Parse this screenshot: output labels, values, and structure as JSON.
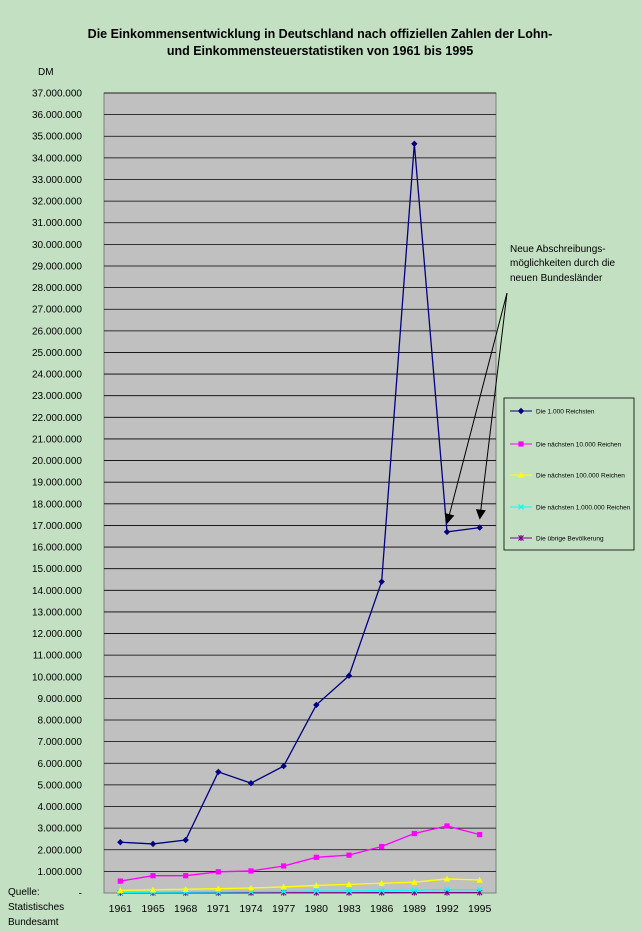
{
  "chart_data": {
    "type": "line",
    "title_lines": [
      "Die Einkommensentwicklung in Deutschland nach offiziellen Zahlen der Lohn-",
      "und Einkommensteuerstatistiken von 1961 bis 1995"
    ],
    "ylabel": "DM",
    "categories": [
      "1961",
      "1965",
      "1968",
      "1971",
      "1974",
      "1977",
      "1980",
      "1983",
      "1986",
      "1989",
      "1992",
      "1995"
    ],
    "ylim": [
      0,
      37000000
    ],
    "y_ticks": [
      "-",
      "1.000.000",
      "2.000.000",
      "3.000.000",
      "4.000.000",
      "5.000.000",
      "6.000.000",
      "7.000.000",
      "8.000.000",
      "9.000.000",
      "10.000.000",
      "11.000.000",
      "12.000.000",
      "13.000.000",
      "14.000.000",
      "15.000.000",
      "16.000.000",
      "17.000.000",
      "18.000.000",
      "19.000.000",
      "20.000.000",
      "21.000.000",
      "22.000.000",
      "23.000.000",
      "24.000.000",
      "25.000.000",
      "26.000.000",
      "27.000.000",
      "28.000.000",
      "29.000.000",
      "30.000.000",
      "31.000.000",
      "32.000.000",
      "33.000.000",
      "34.000.000",
      "35.000.000",
      "36.000.000",
      "37.000.000"
    ],
    "grid": true,
    "plot_background": "#c0c0c0",
    "legend_position": "right",
    "series": [
      {
        "name": "Die 1.000 Reichsten",
        "color": "#000080",
        "marker": "diamond",
        "values": [
          2350000,
          2270000,
          2450000,
          5600000,
          5080000,
          5870000,
          8700000,
          10050000,
          14400000,
          34650000,
          16700000,
          16900000
        ]
      },
      {
        "name": "Die nächsten 10.000 Reichen",
        "color": "#ff00ff",
        "marker": "square",
        "values": [
          550000,
          800000,
          800000,
          980000,
          1020000,
          1250000,
          1650000,
          1750000,
          2150000,
          2750000,
          3100000,
          2700000
        ]
      },
      {
        "name": "Die nächsten 100.000 Reichen",
        "color": "#ffff00",
        "marker": "triangle",
        "values": [
          120000,
          150000,
          170000,
          200000,
          230000,
          280000,
          350000,
          400000,
          450000,
          500000,
          650000,
          600000
        ]
      },
      {
        "name": "Die nächsten 1.000.000 Reichen",
        "color": "#00ffff",
        "marker": "x",
        "values": [
          30000,
          35000,
          40000,
          50000,
          60000,
          70000,
          90000,
          100000,
          110000,
          130000,
          160000,
          150000
        ]
      },
      {
        "name": "Die übrige Bevölkerung",
        "color": "#800080",
        "marker": "star",
        "values": [
          5000,
          6000,
          7000,
          8000,
          9000,
          10000,
          12000,
          13000,
          14000,
          16000,
          18000,
          17000
        ]
      }
    ],
    "annotation": {
      "lines": [
        "Neue Abschreibungs-",
        "möglichkeiten  durch die",
        "neuen Bundesländer"
      ],
      "arrow_targets": [
        "1992",
        "1995"
      ]
    },
    "source_lines": [
      "Quelle:",
      "Statistisches",
      "Bundesamt"
    ]
  }
}
